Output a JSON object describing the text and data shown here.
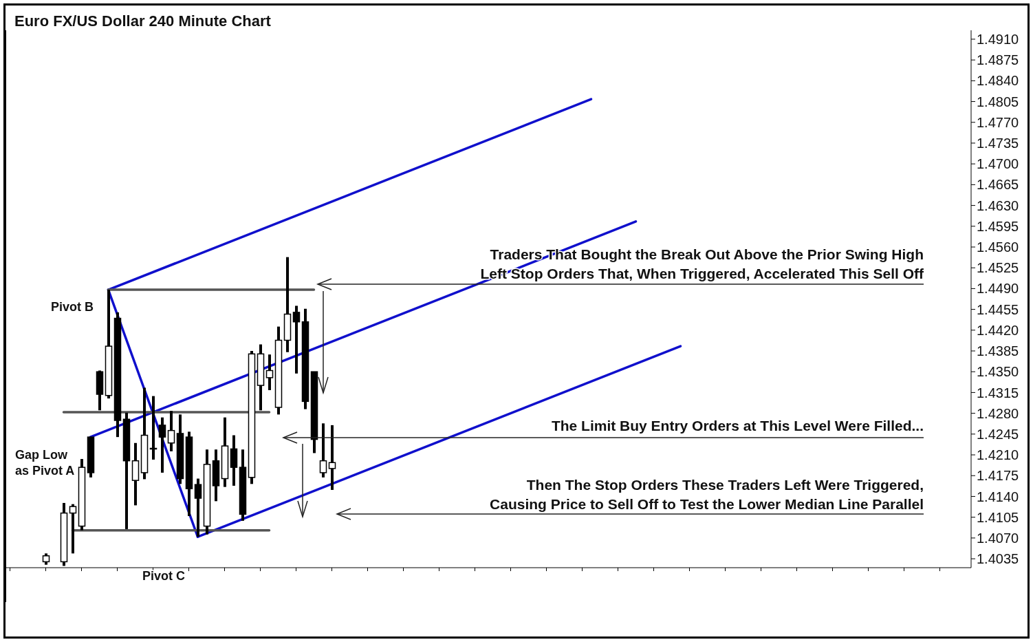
{
  "chart_data": {
    "type": "candlestick",
    "title": "Euro FX/US Dollar 240 Minute Chart",
    "color": "#000000",
    "categories": [
      null,
      null,
      null,
      null,
      null,
      null,
      null,
      null,
      null,
      null,
      null,
      null,
      null,
      null,
      null,
      null,
      null,
      null,
      null,
      null,
      null,
      null,
      null,
      null,
      null,
      null,
      null,
      null,
      null,
      null,
      null,
      null,
      null,
      null,
      null,
      null,
      null,
      null,
      null,
      null,
      null,
      null,
      null,
      null,
      null,
      null,
      null,
      null,
      null,
      null,
      null,
      null,
      null,
      null,
      null,
      null,
      null,
      null,
      null,
      null,
      null,
      null,
      null,
      null,
      null,
      null,
      null,
      null,
      null,
      null,
      null,
      null,
      null,
      null,
      null,
      null,
      null,
      null,
      null,
      null,
      null,
      null,
      null,
      null,
      null,
      null,
      null,
      null,
      null,
      null,
      null,
      null,
      null,
      null,
      null,
      null,
      null,
      null,
      null,
      null,
      null,
      null,
      null,
      null,
      null,
      null,
      null,
      null
    ],
    "ohlc": [
      null,
      null,
      null,
      null,
      [
        1.403,
        1.4044,
        1.4025,
        1.404
      ],
      null,
      [
        1.403,
        1.4129,
        1.4023,
        1.4112
      ],
      [
        1.4112,
        1.4127,
        1.4044,
        1.4123
      ],
      [
        1.409,
        1.4203,
        1.4083,
        1.4189
      ],
      [
        1.424,
        1.424,
        1.4172,
        1.418
      ],
      [
        1.435,
        1.4352,
        1.4285,
        1.4312
      ],
      [
        1.431,
        1.4488,
        1.4305,
        1.4393
      ],
      [
        1.444,
        1.445,
        1.424,
        1.4268
      ],
      [
        1.427,
        1.4281,
        1.4085,
        1.42
      ],
      [
        1.4167,
        1.423,
        1.4125,
        1.42
      ],
      [
        1.418,
        1.4323,
        1.4169,
        1.4243
      ],
      [
        1.422,
        1.4309,
        1.4202,
        1.4221
      ],
      [
        1.426,
        1.4273,
        1.418,
        1.424
      ],
      [
        1.423,
        1.4284,
        1.4216,
        1.4251
      ],
      [
        1.4246,
        1.4278,
        1.4161,
        1.417
      ],
      [
        1.424,
        1.4249,
        1.4107,
        1.4153
      ],
      [
        1.416,
        1.417,
        1.4072,
        1.4137
      ],
      [
        1.409,
        1.4219,
        1.4076,
        1.4194
      ],
      [
        1.42,
        1.4219,
        1.4132,
        1.4158
      ],
      [
        1.417,
        1.4273,
        1.4156,
        1.4225
      ],
      [
        1.422,
        1.4243,
        1.4158,
        1.4189
      ],
      [
        1.4189,
        1.4219,
        1.4099,
        1.411
      ],
      [
        1.4172,
        1.4385,
        1.4161,
        1.438
      ],
      [
        1.4327,
        1.4396,
        1.4285,
        1.438
      ],
      [
        1.434,
        1.4379,
        1.4319,
        1.4352
      ],
      [
        1.429,
        1.4426,
        1.4278,
        1.4403
      ],
      [
        1.4403,
        1.4543,
        1.4383,
        1.4447
      ],
      [
        1.445,
        1.4461,
        1.4347,
        1.4434
      ],
      [
        1.4434,
        1.4456,
        1.4287,
        1.43
      ],
      [
        1.435,
        1.435,
        1.4213,
        1.4236
      ],
      [
        1.418,
        1.4263,
        1.4172,
        1.42
      ],
      [
        1.4187,
        1.426,
        1.4151,
        1.4197
      ],
      null,
      null,
      null,
      null,
      null,
      null,
      null,
      null,
      null,
      null,
      null,
      null,
      null,
      null,
      null,
      null,
      null,
      null,
      null,
      null,
      null,
      null,
      null,
      null,
      null,
      null,
      null,
      null,
      null,
      null,
      null,
      null,
      null,
      null,
      null,
      null,
      null,
      null,
      null,
      null,
      null,
      null,
      null,
      null,
      null,
      null,
      null,
      null,
      null,
      null,
      null,
      null,
      null,
      null,
      null,
      null,
      null,
      null,
      null,
      null,
      null,
      null,
      null,
      null,
      null,
      null,
      null,
      null,
      null,
      null,
      null
    ],
    "series": [
      {
        "type": "line",
        "color": "#1010cc",
        "values": [
          null,
          null,
          null,
          null,
          null,
          null,
          null,
          null,
          null,
          null,
          null,
          1.4488,
          null,
          null,
          null,
          null,
          null,
          null,
          null,
          null,
          null,
          null,
          null,
          null,
          null,
          null,
          null,
          null,
          null,
          null,
          null,
          null,
          null,
          null,
          null,
          null,
          null,
          null,
          null,
          null,
          null,
          null,
          null,
          null,
          null,
          null,
          null,
          null,
          null,
          null,
          null,
          null,
          null,
          null,
          null,
          null,
          null,
          null,
          null,
          null,
          null,
          null,
          null,
          null,
          null,
          1.4809,
          null,
          null,
          null,
          null,
          null,
          null,
          null,
          null,
          null,
          null,
          null,
          null,
          null,
          null,
          null,
          null,
          null,
          null,
          null,
          null,
          null,
          null,
          null,
          null,
          null,
          null,
          null,
          null,
          null,
          null,
          null,
          null,
          null,
          null,
          null,
          null,
          null,
          null,
          null,
          null,
          null,
          null
        ]
      },
      {
        "type": "line",
        "color": "#1010cc",
        "values": [
          null,
          null,
          null,
          null,
          null,
          null,
          null,
          null,
          null,
          1.424,
          null,
          null,
          null,
          null,
          null,
          null,
          null,
          null,
          null,
          null,
          null,
          null,
          null,
          null,
          null,
          null,
          null,
          null,
          null,
          null,
          null,
          null,
          null,
          null,
          null,
          null,
          null,
          null,
          null,
          null,
          null,
          null,
          null,
          null,
          null,
          null,
          null,
          null,
          null,
          null,
          null,
          null,
          null,
          null,
          null,
          null,
          null,
          null,
          null,
          null,
          null,
          null,
          null,
          null,
          null,
          null,
          null,
          null,
          null,
          null,
          1.4603,
          null,
          null,
          null,
          null,
          null,
          null,
          null,
          null,
          null,
          null,
          null,
          null,
          null,
          null,
          null,
          null,
          null,
          null,
          null,
          null,
          null,
          null,
          null,
          null,
          null,
          null,
          null,
          null,
          null,
          null,
          null,
          null,
          null,
          null,
          null,
          null,
          null
        ]
      },
      {
        "type": "line",
        "color": "#1010cc",
        "values": [
          null,
          null,
          null,
          null,
          null,
          null,
          null,
          null,
          null,
          null,
          null,
          null,
          null,
          null,
          null,
          null,
          null,
          null,
          null,
          null,
          null,
          1.4072,
          null,
          null,
          null,
          null,
          null,
          null,
          null,
          null,
          null,
          null,
          null,
          null,
          null,
          null,
          null,
          null,
          null,
          null,
          null,
          null,
          null,
          null,
          null,
          null,
          null,
          null,
          null,
          null,
          null,
          null,
          null,
          null,
          null,
          null,
          null,
          null,
          null,
          null,
          null,
          null,
          null,
          null,
          null,
          null,
          null,
          null,
          null,
          null,
          null,
          null,
          null,
          null,
          null,
          1.4393,
          null,
          null,
          null,
          null,
          null,
          null,
          null,
          null,
          null,
          null,
          null,
          null,
          null,
          null,
          null,
          null,
          null,
          null,
          null,
          null,
          null,
          null,
          null,
          null,
          null,
          null,
          null,
          null,
          null,
          null,
          null,
          null
        ]
      },
      {
        "type": "line",
        "color": "#1010cc",
        "values": [
          null,
          null,
          null,
          null,
          null,
          null,
          null,
          null,
          null,
          null,
          null,
          1.4488,
          null,
          null,
          null,
          null,
          null,
          null,
          null,
          null,
          null,
          1.4072,
          null,
          null,
          null,
          null,
          null,
          null,
          null,
          null,
          null,
          null,
          null,
          null,
          null,
          null,
          null,
          null,
          null,
          null,
          null,
          null,
          null,
          null,
          null,
          null,
          null,
          null,
          null,
          null,
          null,
          null,
          null,
          null,
          null,
          null,
          null,
          null,
          null,
          null,
          null,
          null,
          null,
          null,
          null,
          null,
          null,
          null,
          null,
          null,
          null,
          null,
          null,
          null,
          null,
          null,
          null,
          null,
          null,
          null,
          null,
          null,
          null,
          null,
          null,
          null,
          null,
          null,
          null,
          null,
          null,
          null,
          null,
          null,
          null,
          null,
          null,
          null,
          null,
          null,
          null,
          null,
          null,
          null,
          null,
          null,
          null,
          null
        ]
      },
      {
        "type": "line",
        "color": "#555555",
        "values": [
          null,
          null,
          null,
          null,
          null,
          null,
          null,
          null,
          null,
          null,
          null,
          1.4488,
          null,
          null,
          null,
          null,
          null,
          null,
          null,
          null,
          null,
          null,
          null,
          null,
          null,
          null,
          null,
          null,
          null,
          null,
          null,
          null,
          null,
          null,
          1.4488,
          null,
          null,
          null,
          null,
          null,
          null,
          null,
          null,
          null,
          null,
          null,
          null,
          null,
          null,
          null,
          null,
          null,
          null,
          null,
          null,
          null,
          null,
          null,
          null,
          null,
          null,
          null,
          null,
          null,
          null,
          null,
          null,
          null,
          null,
          null,
          null,
          null,
          null,
          null,
          null,
          null,
          null,
          null,
          null,
          null,
          null,
          null,
          null,
          null,
          null,
          null,
          null,
          null,
          null,
          null,
          null,
          null,
          null,
          null,
          null,
          null,
          null,
          null,
          null,
          null,
          null,
          null,
          null,
          null,
          null,
          null,
          null,
          null
        ]
      },
      {
        "type": "line",
        "color": "#555555",
        "values": [
          null,
          null,
          null,
          null,
          null,
          null,
          1.4282,
          null,
          null,
          null,
          null,
          null,
          null,
          null,
          null,
          null,
          null,
          null,
          null,
          null,
          null,
          null,
          null,
          null,
          null,
          null,
          null,
          null,
          null,
          1.4282,
          null,
          null,
          null,
          null,
          null,
          null,
          null,
          null,
          null,
          null,
          null,
          null,
          null,
          null,
          null,
          null,
          null,
          null,
          null,
          null,
          null,
          null,
          null,
          null,
          null,
          null,
          null,
          null,
          null,
          null,
          null,
          null,
          null,
          null,
          null,
          null,
          null,
          null,
          null,
          null,
          null,
          null,
          null,
          null,
          null,
          null,
          null,
          null,
          null,
          null,
          null,
          null,
          null,
          null,
          null,
          null,
          null,
          null,
          null,
          null,
          null,
          null,
          null,
          null,
          null,
          null,
          null,
          null,
          null,
          null,
          null,
          null,
          null,
          null,
          null,
          null,
          null,
          null
        ]
      },
      {
        "type": "line",
        "color": "#555555",
        "values": [
          null,
          null,
          null,
          null,
          null,
          null,
          null,
          1.4083,
          null,
          null,
          null,
          null,
          null,
          null,
          null,
          null,
          null,
          null,
          null,
          null,
          null,
          null,
          null,
          null,
          null,
          null,
          null,
          null,
          null,
          1.4083,
          null,
          null,
          null,
          null,
          null,
          null,
          null,
          null,
          null,
          null,
          null,
          null,
          null,
          null,
          null,
          null,
          null,
          null,
          null,
          null,
          null,
          null,
          null,
          null,
          null,
          null,
          null,
          null,
          null,
          null,
          null,
          null,
          null,
          null,
          null,
          null,
          null,
          null,
          null,
          null,
          null,
          null,
          null,
          null,
          null,
          null,
          null,
          null,
          null,
          null,
          null,
          null,
          null,
          null,
          null,
          null,
          null,
          null,
          null,
          null,
          null,
          null,
          null,
          null,
          null,
          null,
          null,
          null,
          null,
          null,
          null,
          null,
          null,
          null,
          null,
          null,
          null,
          null
        ]
      }
    ],
    "ylim": [
      1.402,
      1.4925
    ],
    "yticks": [
      1.4035,
      {
        "value": 1.407,
        "label": "1.4070"
      },
      1.4105,
      {
        "value": 1.414,
        "label": "1.4140"
      },
      1.4175,
      {
        "value": 1.421,
        "label": "1.4210"
      },
      1.4245,
      {
        "value": 1.428,
        "label": "1.4280"
      },
      1.4315,
      {
        "value": 1.435,
        "label": "1.4350"
      },
      1.4385,
      {
        "value": 1.442,
        "label": "1.4420"
      },
      1.4455,
      {
        "value": 1.449,
        "label": "1.4490"
      },
      1.4525,
      {
        "value": 1.456,
        "label": "1.4560"
      },
      1.4595,
      {
        "value": 1.463,
        "label": "1.4630"
      },
      1.4665,
      {
        "value": 1.47,
        "label": "1.4700"
      },
      1.4735,
      {
        "value": 1.477,
        "label": "1.4770"
      },
      1.4805,
      {
        "value": 1.484,
        "label": "1.4840"
      },
      1.4875,
      {
        "value": 1.491,
        "label": "1.4910"
      }
    ],
    "tick_labels": "y",
    "annotations": [
      "Pivot B",
      "Gap Low\nas Pivot A",
      "Pivot C",
      "Traders That Bought the Break Out Above the Prior Swing High\nLeft Stop Orders That, When Triggered, Accelerated This Sell Off",
      "The Limit Buy Entry Orders at This Level Were Filled...",
      "Then The Stop Orders These Traders Left Were Triggered,\nCausing Price to Sell Off to Test the Lower Median Line Parallel"
    ]
  }
}
